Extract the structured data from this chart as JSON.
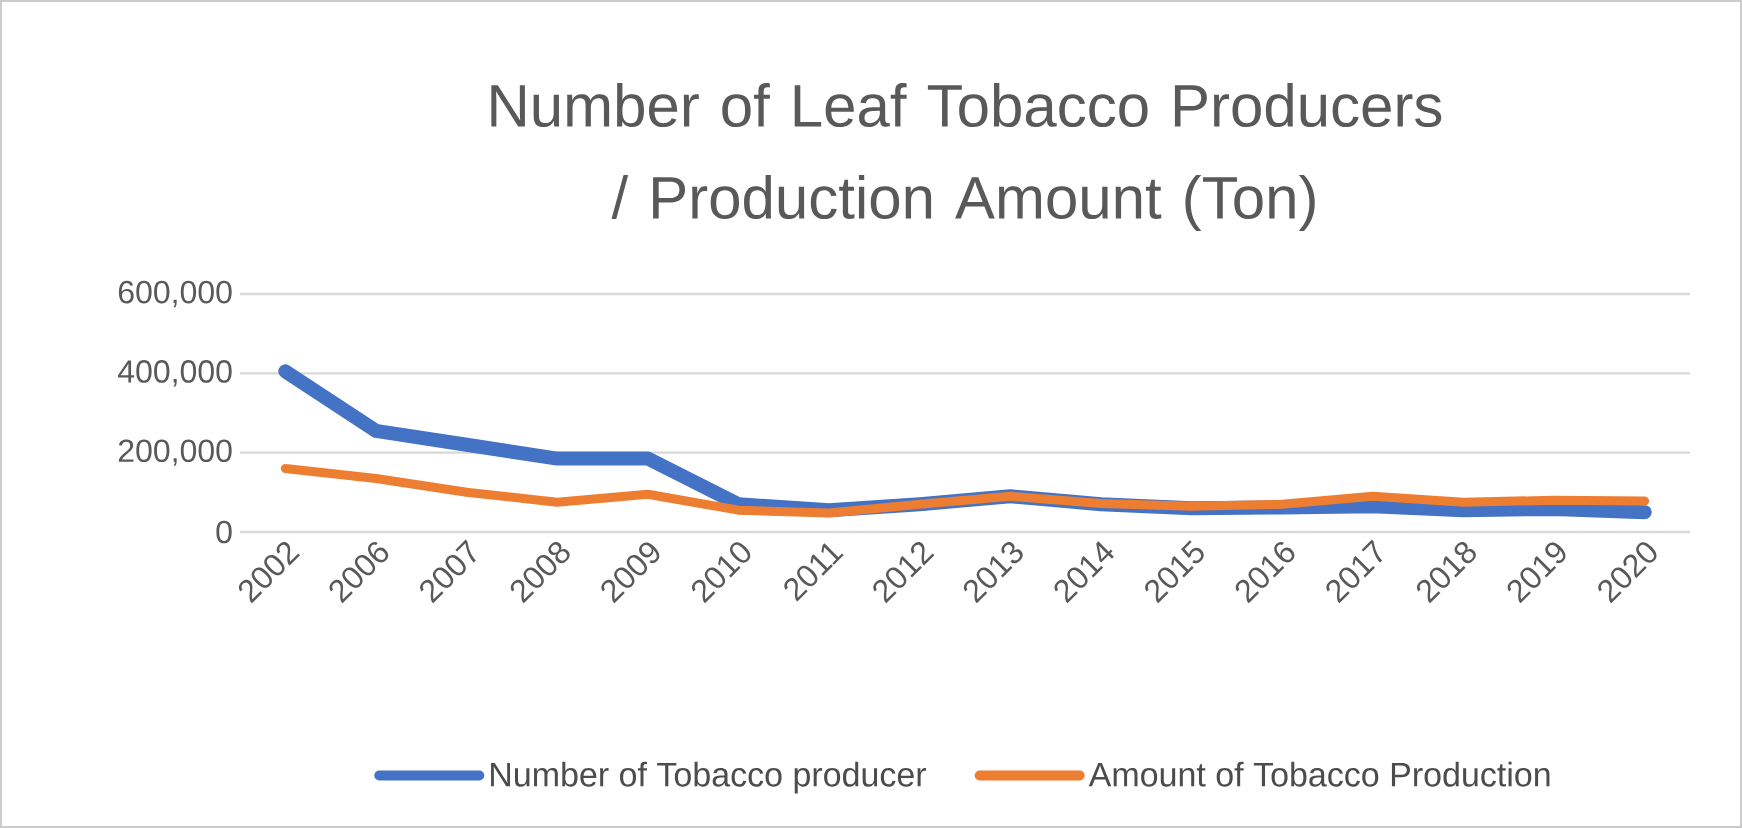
{
  "chart_data": {
    "type": "line",
    "title": "Number of Leaf Tobacco Producers / Production Amount (Ton)",
    "categories": [
      "2002",
      "2006",
      "2007",
      "2008",
      "2009",
      "2010",
      "2011",
      "2012",
      "2013",
      "2014",
      "2015",
      "2016",
      "2017",
      "2018",
      "2019",
      "2020"
    ],
    "series": [
      {
        "name": "Number of Tobacco producer",
        "color": "#4472c4",
        "values": [
          405000,
          255000,
          220000,
          185000,
          185000,
          70000,
          55000,
          70000,
          90000,
          70000,
          60000,
          62000,
          65000,
          55000,
          58000,
          50000
        ]
      },
      {
        "name": "Amount of Tobacco Production",
        "color": "#ed7d31",
        "values": [
          160000,
          135000,
          100000,
          75000,
          95000,
          55000,
          48000,
          70000,
          90000,
          72000,
          65000,
          70000,
          90000,
          75000,
          80000,
          78000
        ]
      }
    ],
    "ylim": [
      0,
      600000
    ],
    "yticks": [
      {
        "value": 0,
        "label": "0"
      },
      {
        "value": 200000,
        "label": "200,000"
      },
      {
        "value": 400000,
        "label": "400,000"
      },
      {
        "value": 600000,
        "label": "600,000"
      }
    ],
    "grid": "y",
    "legend": "bottom",
    "marker": "none",
    "line_style": "solid"
  }
}
